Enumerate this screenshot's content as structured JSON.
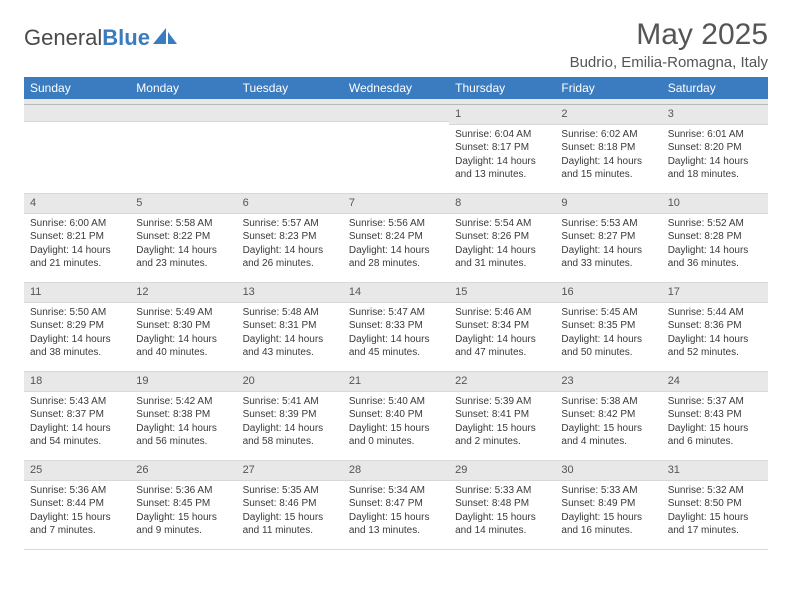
{
  "logo": {
    "general": "General",
    "blue": "Blue"
  },
  "title": "May 2025",
  "location": "Budrio, Emilia-Romagna, Italy",
  "colors": {
    "header_bg": "#3b7bbf",
    "header_text": "#ffffff",
    "daynum_bg": "#e8e8e8",
    "text": "#3a3a3a",
    "title": "#555555",
    "border": "#d8d8d8"
  },
  "typography": {
    "title_fontsize": 30,
    "location_fontsize": 15,
    "weekday_fontsize": 12,
    "daynum_fontsize": 11,
    "body_fontsize": 10
  },
  "weekdays": [
    "Sunday",
    "Monday",
    "Tuesday",
    "Wednesday",
    "Thursday",
    "Friday",
    "Saturday"
  ],
  "weeks": [
    [
      null,
      null,
      null,
      null,
      {
        "n": "1",
        "sunrise": "Sunrise: 6:04 AM",
        "sunset": "Sunset: 8:17 PM",
        "daylight": "Daylight: 14 hours and 13 minutes."
      },
      {
        "n": "2",
        "sunrise": "Sunrise: 6:02 AM",
        "sunset": "Sunset: 8:18 PM",
        "daylight": "Daylight: 14 hours and 15 minutes."
      },
      {
        "n": "3",
        "sunrise": "Sunrise: 6:01 AM",
        "sunset": "Sunset: 8:20 PM",
        "daylight": "Daylight: 14 hours and 18 minutes."
      }
    ],
    [
      {
        "n": "4",
        "sunrise": "Sunrise: 6:00 AM",
        "sunset": "Sunset: 8:21 PM",
        "daylight": "Daylight: 14 hours and 21 minutes."
      },
      {
        "n": "5",
        "sunrise": "Sunrise: 5:58 AM",
        "sunset": "Sunset: 8:22 PM",
        "daylight": "Daylight: 14 hours and 23 minutes."
      },
      {
        "n": "6",
        "sunrise": "Sunrise: 5:57 AM",
        "sunset": "Sunset: 8:23 PM",
        "daylight": "Daylight: 14 hours and 26 minutes."
      },
      {
        "n": "7",
        "sunrise": "Sunrise: 5:56 AM",
        "sunset": "Sunset: 8:24 PM",
        "daylight": "Daylight: 14 hours and 28 minutes."
      },
      {
        "n": "8",
        "sunrise": "Sunrise: 5:54 AM",
        "sunset": "Sunset: 8:26 PM",
        "daylight": "Daylight: 14 hours and 31 minutes."
      },
      {
        "n": "9",
        "sunrise": "Sunrise: 5:53 AM",
        "sunset": "Sunset: 8:27 PM",
        "daylight": "Daylight: 14 hours and 33 minutes."
      },
      {
        "n": "10",
        "sunrise": "Sunrise: 5:52 AM",
        "sunset": "Sunset: 8:28 PM",
        "daylight": "Daylight: 14 hours and 36 minutes."
      }
    ],
    [
      {
        "n": "11",
        "sunrise": "Sunrise: 5:50 AM",
        "sunset": "Sunset: 8:29 PM",
        "daylight": "Daylight: 14 hours and 38 minutes."
      },
      {
        "n": "12",
        "sunrise": "Sunrise: 5:49 AM",
        "sunset": "Sunset: 8:30 PM",
        "daylight": "Daylight: 14 hours and 40 minutes."
      },
      {
        "n": "13",
        "sunrise": "Sunrise: 5:48 AM",
        "sunset": "Sunset: 8:31 PM",
        "daylight": "Daylight: 14 hours and 43 minutes."
      },
      {
        "n": "14",
        "sunrise": "Sunrise: 5:47 AM",
        "sunset": "Sunset: 8:33 PM",
        "daylight": "Daylight: 14 hours and 45 minutes."
      },
      {
        "n": "15",
        "sunrise": "Sunrise: 5:46 AM",
        "sunset": "Sunset: 8:34 PM",
        "daylight": "Daylight: 14 hours and 47 minutes."
      },
      {
        "n": "16",
        "sunrise": "Sunrise: 5:45 AM",
        "sunset": "Sunset: 8:35 PM",
        "daylight": "Daylight: 14 hours and 50 minutes."
      },
      {
        "n": "17",
        "sunrise": "Sunrise: 5:44 AM",
        "sunset": "Sunset: 8:36 PM",
        "daylight": "Daylight: 14 hours and 52 minutes."
      }
    ],
    [
      {
        "n": "18",
        "sunrise": "Sunrise: 5:43 AM",
        "sunset": "Sunset: 8:37 PM",
        "daylight": "Daylight: 14 hours and 54 minutes."
      },
      {
        "n": "19",
        "sunrise": "Sunrise: 5:42 AM",
        "sunset": "Sunset: 8:38 PM",
        "daylight": "Daylight: 14 hours and 56 minutes."
      },
      {
        "n": "20",
        "sunrise": "Sunrise: 5:41 AM",
        "sunset": "Sunset: 8:39 PM",
        "daylight": "Daylight: 14 hours and 58 minutes."
      },
      {
        "n": "21",
        "sunrise": "Sunrise: 5:40 AM",
        "sunset": "Sunset: 8:40 PM",
        "daylight": "Daylight: 15 hours and 0 minutes."
      },
      {
        "n": "22",
        "sunrise": "Sunrise: 5:39 AM",
        "sunset": "Sunset: 8:41 PM",
        "daylight": "Daylight: 15 hours and 2 minutes."
      },
      {
        "n": "23",
        "sunrise": "Sunrise: 5:38 AM",
        "sunset": "Sunset: 8:42 PM",
        "daylight": "Daylight: 15 hours and 4 minutes."
      },
      {
        "n": "24",
        "sunrise": "Sunrise: 5:37 AM",
        "sunset": "Sunset: 8:43 PM",
        "daylight": "Daylight: 15 hours and 6 minutes."
      }
    ],
    [
      {
        "n": "25",
        "sunrise": "Sunrise: 5:36 AM",
        "sunset": "Sunset: 8:44 PM",
        "daylight": "Daylight: 15 hours and 7 minutes."
      },
      {
        "n": "26",
        "sunrise": "Sunrise: 5:36 AM",
        "sunset": "Sunset: 8:45 PM",
        "daylight": "Daylight: 15 hours and 9 minutes."
      },
      {
        "n": "27",
        "sunrise": "Sunrise: 5:35 AM",
        "sunset": "Sunset: 8:46 PM",
        "daylight": "Daylight: 15 hours and 11 minutes."
      },
      {
        "n": "28",
        "sunrise": "Sunrise: 5:34 AM",
        "sunset": "Sunset: 8:47 PM",
        "daylight": "Daylight: 15 hours and 13 minutes."
      },
      {
        "n": "29",
        "sunrise": "Sunrise: 5:33 AM",
        "sunset": "Sunset: 8:48 PM",
        "daylight": "Daylight: 15 hours and 14 minutes."
      },
      {
        "n": "30",
        "sunrise": "Sunrise: 5:33 AM",
        "sunset": "Sunset: 8:49 PM",
        "daylight": "Daylight: 15 hours and 16 minutes."
      },
      {
        "n": "31",
        "sunrise": "Sunrise: 5:32 AM",
        "sunset": "Sunset: 8:50 PM",
        "daylight": "Daylight: 15 hours and 17 minutes."
      }
    ]
  ]
}
